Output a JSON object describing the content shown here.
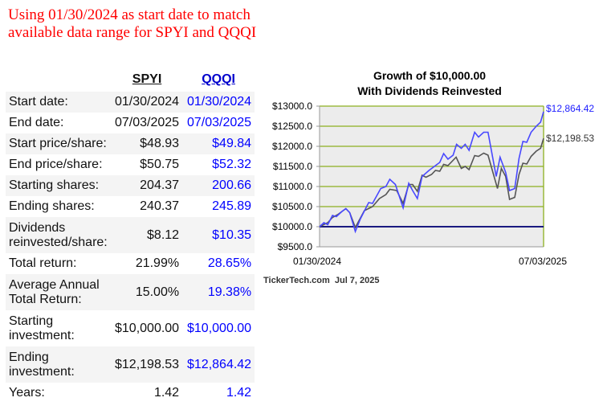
{
  "note": "Using 01/30/2024 as start date to match available data range for SPYI and QQQI",
  "table": {
    "headers": [
      "SPYI",
      "QQQI"
    ],
    "rows": [
      {
        "label": "Start date:",
        "spyi": "01/30/2024",
        "qqqi": "01/30/2024"
      },
      {
        "label": "End date:",
        "spyi": "07/03/2025",
        "qqqi": "07/03/2025"
      },
      {
        "label": "Start price/share:",
        "spyi": "$48.93",
        "qqqi": "$49.84"
      },
      {
        "label": "End price/share:",
        "spyi": "$50.75",
        "qqqi": "$52.32"
      },
      {
        "label": "Starting shares:",
        "spyi": "204.37",
        "qqqi": "200.66"
      },
      {
        "label": "Ending shares:",
        "spyi": "240.37",
        "qqqi": "245.89"
      },
      {
        "label": "Dividends reinvested/share:",
        "spyi": "$8.12",
        "qqqi": "$10.35"
      },
      {
        "label": "Total return:",
        "spyi": "21.99%",
        "qqqi": "28.65%"
      },
      {
        "label": "Average Annual Total Return:",
        "spyi": "15.00%",
        "qqqi": "19.38%"
      },
      {
        "label": "Starting investment:",
        "spyi": "$10,000.00",
        "qqqi": "$10,000.00"
      },
      {
        "label": "Ending investment:",
        "spyi": "$12,198.53",
        "qqqi": "$12,864.42"
      },
      {
        "label": "Years:",
        "spyi": "1.42",
        "qqqi": "1.42"
      }
    ]
  },
  "chart_data": {
    "type": "line",
    "title": "Growth of $10,000.00",
    "subtitle": "With Dividends Reinvested",
    "xlabel_start": "01/30/2024",
    "xlabel_end": "07/03/2025",
    "x_unit": "days since 01/30/2024",
    "xlim": [
      0,
      520
    ],
    "ylim": [
      9500,
      13000
    ],
    "yticks": [
      "$13000.0",
      "$12500.0",
      "$12000.0",
      "$11500.0",
      "$11000.0",
      "$10500.0",
      "$10000.0",
      "$9500.0"
    ],
    "ytick_values": [
      13000,
      12500,
      12000,
      11500,
      11000,
      10500,
      10000,
      9500
    ],
    "baseline": 10000,
    "credit": "TickerTech.com  Jul 7, 2025",
    "series": [
      {
        "name": "QQQI",
        "color": "#4848ff",
        "end_label": "$12,864.42",
        "x": [
          0,
          10,
          19,
          30,
          39,
          52,
          61,
          70,
          83,
          95,
          114,
          123,
          142,
          154,
          163,
          176,
          194,
          207,
          216,
          227,
          238,
          254,
          279,
          288,
          298,
          310,
          318,
          329,
          338,
          347,
          360,
          369,
          381,
          391,
          410,
          419,
          432,
          441,
          453,
          463,
          472,
          481,
          491,
          503,
          513,
          520
        ],
        "y": [
          10000,
          10100,
          10050,
          10280,
          10250,
          10380,
          10450,
          10350,
          9880,
          10200,
          10600,
          10580,
          10950,
          11000,
          11180,
          11050,
          10470,
          11080,
          10900,
          10700,
          11250,
          11400,
          11600,
          11820,
          11680,
          11780,
          12050,
          11950,
          12050,
          11900,
          12350,
          12230,
          12350,
          12350,
          11250,
          11730,
          11350,
          10900,
          10950,
          11700,
          12120,
          12100,
          12350,
          12500,
          12600,
          12864
        ]
      },
      {
        "name": "SPYI",
        "color": "#555555",
        "end_label": "$12,198.53",
        "x": [
          0,
          19,
          30,
          42,
          61,
          70,
          83,
          104,
          123,
          139,
          154,
          163,
          179,
          194,
          207,
          216,
          227,
          238,
          247,
          260,
          269,
          279,
          288,
          298,
          317,
          329,
          338,
          347,
          360,
          369,
          381,
          391,
          413,
          422,
          432,
          441,
          453,
          463,
          472,
          481,
          491,
          503,
          513,
          520
        ],
        "y": [
          10000,
          10100,
          10230,
          10300,
          10450,
          10350,
          9980,
          10400,
          10500,
          10700,
          10800,
          10930,
          10900,
          10580,
          11050,
          11050,
          10880,
          11280,
          11230,
          11300,
          11400,
          11380,
          11550,
          11520,
          11730,
          11450,
          11500,
          11420,
          11770,
          11750,
          11830,
          11780,
          10950,
          11450,
          11250,
          10680,
          10730,
          11300,
          11580,
          11560,
          11750,
          11880,
          11950,
          12198
        ]
      }
    ]
  }
}
